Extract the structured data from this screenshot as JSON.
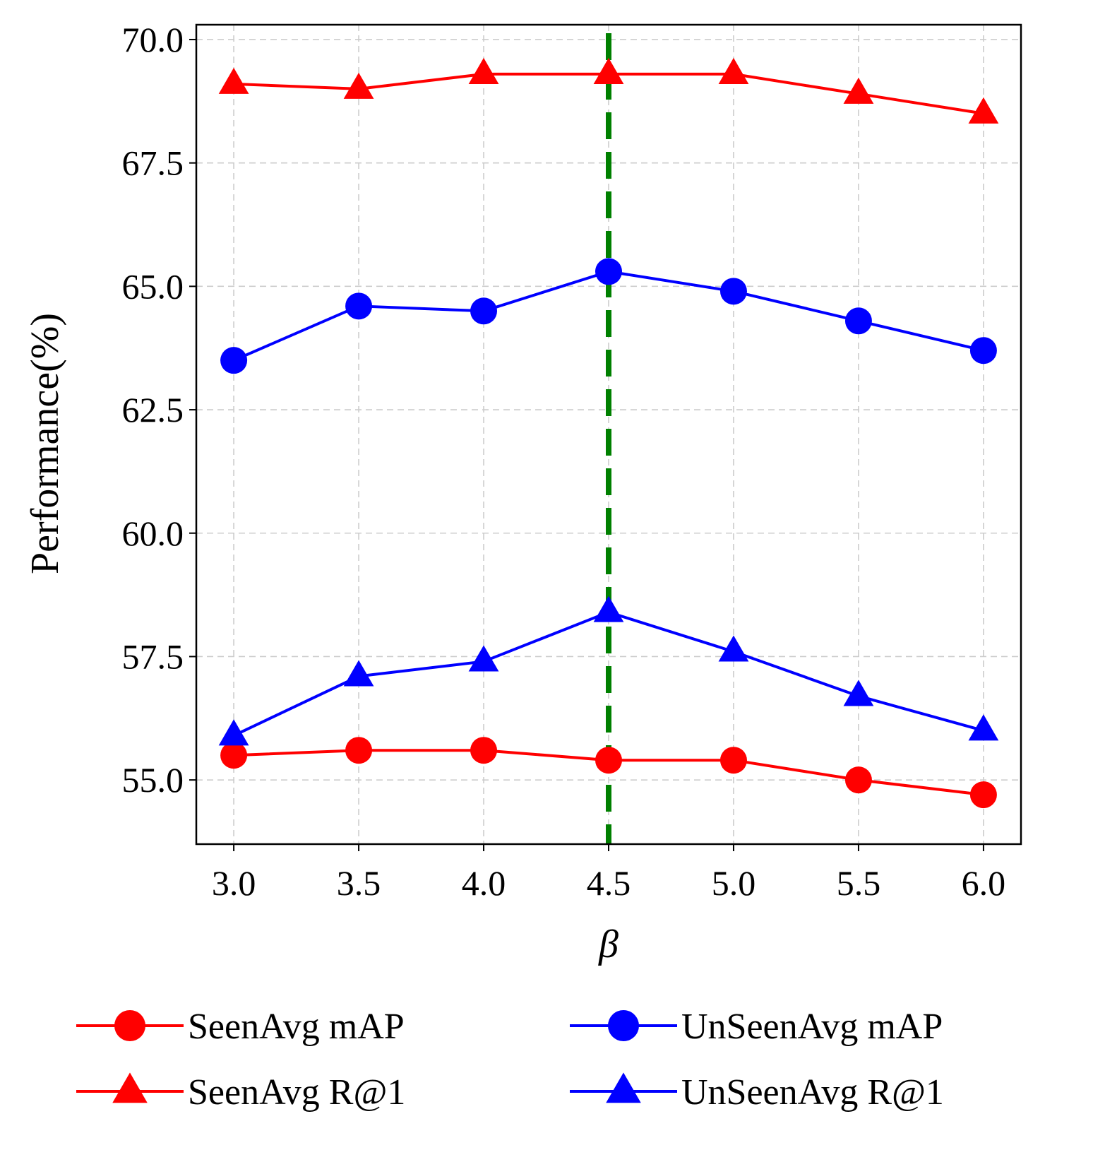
{
  "chart_data": {
    "type": "line",
    "xlabel": "β",
    "ylabel": "Performance(%)",
    "x": [
      3.0,
      3.5,
      4.0,
      4.5,
      5.0,
      5.5,
      6.0
    ],
    "x_tick_labels": [
      "3.0",
      "3.5",
      "4.0",
      "4.5",
      "5.0",
      "5.5",
      "6.0"
    ],
    "y_ticks": [
      55.0,
      57.5,
      60.0,
      62.5,
      65.0,
      67.5,
      70.0
    ],
    "y_tick_labels": [
      "55.0",
      "57.5",
      "60.0",
      "62.5",
      "65.0",
      "67.5",
      "70.0"
    ],
    "xlim": [
      2.85,
      6.15
    ],
    "ylim": [
      53.7,
      70.3
    ],
    "grid": true,
    "vline": {
      "x": 4.5,
      "color": "#008000",
      "style": "dashed"
    },
    "series": [
      {
        "name": "SeenAvg mAP",
        "color": "#ff0000",
        "marker": "circle",
        "values": [
          55.5,
          55.6,
          55.6,
          55.4,
          55.4,
          55.0,
          54.7
        ]
      },
      {
        "name": "UnSeenAvg mAP",
        "color": "#0000ff",
        "marker": "circle",
        "values": [
          63.5,
          64.6,
          64.5,
          65.3,
          64.9,
          64.3,
          63.7
        ]
      },
      {
        "name": "SeenAvg R@1",
        "color": "#ff0000",
        "marker": "triangle",
        "values": [
          69.1,
          69.0,
          69.3,
          69.3,
          69.3,
          68.9,
          68.5
        ]
      },
      {
        "name": "UnSeenAvg R@1",
        "color": "#0000ff",
        "marker": "triangle",
        "values": [
          55.9,
          57.1,
          57.4,
          58.4,
          57.6,
          56.7,
          56.0
        ]
      }
    ],
    "legend": {
      "position": "bottom",
      "items": [
        "SeenAvg mAP",
        "UnSeenAvg mAP",
        "SeenAvg R@1",
        "UnSeenAvg R@1"
      ]
    }
  }
}
